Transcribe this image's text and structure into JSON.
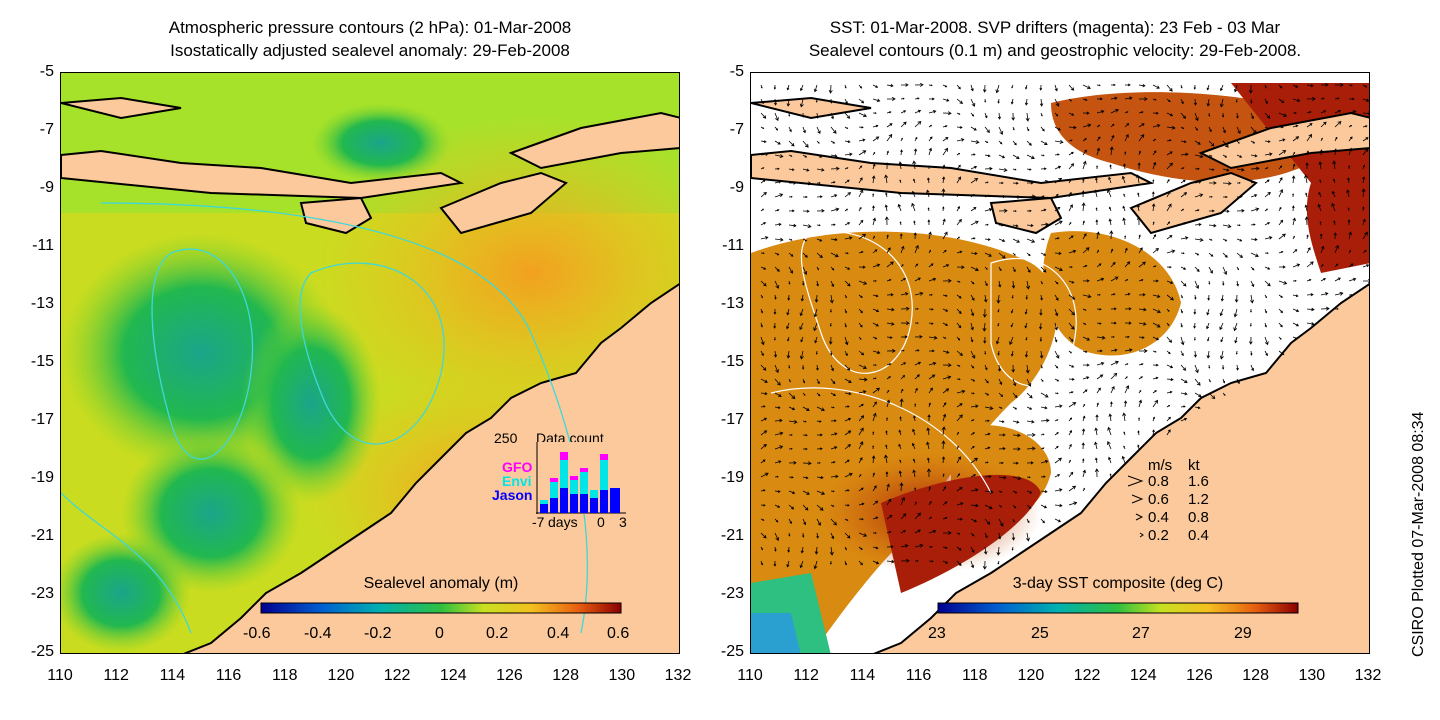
{
  "left": {
    "title_line1": "Atmospheric pressure contours (2 hPa): 01-Mar-2008",
    "title_line2": "Isostatically adjusted sealevel anomaly: 29-Feb-2008",
    "colorbar_label": "Sealevel anomaly (m)",
    "colorbar_ticks": [
      "-0.6",
      "-0.4",
      "-0.2",
      "0",
      "0.2",
      "0.4",
      "0.6"
    ],
    "inset": {
      "title": "Data count",
      "ymax_label": "250",
      "legend": [
        "GFO",
        "Envi",
        "Jason"
      ],
      "legend_colors": [
        "#ff00ff",
        "#00e5e5",
        "#0000ff"
      ],
      "xlabel": "days",
      "x_ticks": [
        "-7",
        "0",
        "3"
      ]
    }
  },
  "right": {
    "title_line1": "SST: 01-Mar-2008. SVP drifters (magenta): 23 Feb - 03 Mar",
    "title_line2": "Sealevel contours (0.1 m) and geostrophic velocity: 29-Feb-2008.",
    "colorbar_label": "3-day SST composite (deg C)",
    "colorbar_ticks": [
      "23",
      "25",
      "27",
      "29"
    ],
    "vector_legend": {
      "header_ms": "m/s",
      "header_kt": "kt",
      "rows": [
        {
          "ms": "0.8",
          "kt": "1.6"
        },
        {
          "ms": "0.6",
          "kt": "1.2"
        },
        {
          "ms": "0.4",
          "kt": "0.8"
        },
        {
          "ms": "0.2",
          "kt": "0.4"
        }
      ]
    }
  },
  "axes": {
    "lat_ticks": [
      "-5",
      "-7",
      "-9",
      "-11",
      "-13",
      "-15",
      "-17",
      "-19",
      "-21",
      "-23",
      "-25"
    ],
    "lon_ticks": [
      "110",
      "112",
      "114",
      "116",
      "118",
      "120",
      "122",
      "124",
      "126",
      "128",
      "130",
      "132"
    ]
  },
  "credit": "CSIRO Plotted 07-Mar-2008 08:34",
  "colors": {
    "land": "#fbc99b",
    "coast": "#000000",
    "sla_low": "#1aa58a",
    "sla_mid": "#a6e22a",
    "sla_high": "#f2b020",
    "sst_warm": "#b5280c",
    "sst_mid": "#d98a10",
    "contour_cyan": "#3fd8d8"
  }
}
